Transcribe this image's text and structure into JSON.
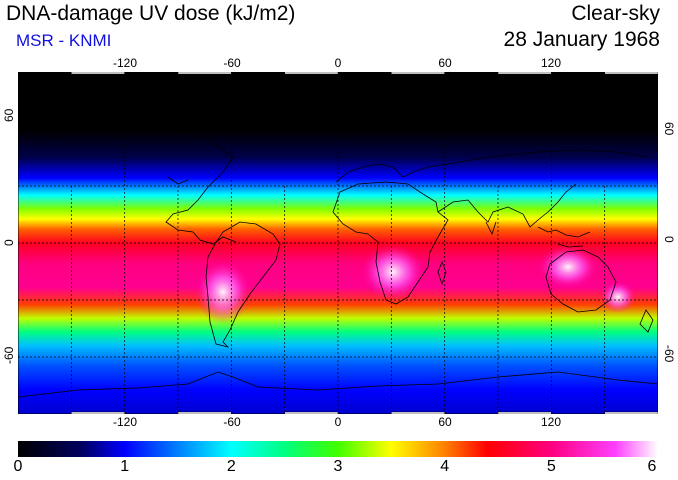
{
  "header": {
    "title": "DNA-damage UV dose (kJ/m2)",
    "source": "MSR - KNMI",
    "sky_condition": "Clear-sky",
    "date": "28 January 1968"
  },
  "map": {
    "lon_ticks": [
      "-120",
      "-60",
      "0",
      "60",
      "120"
    ],
    "lat_ticks": [
      "60",
      "0",
      "-60"
    ],
    "lon_values": [
      -120,
      -60,
      0,
      60,
      120
    ],
    "lat_values": [
      60,
      0,
      -60
    ],
    "lon_range": [
      -180,
      180
    ],
    "lat_range": [
      -90,
      90
    ],
    "grid": "dashed",
    "projection": "plate-carree",
    "cold_color": "#000000",
    "hot_color": "#ffffff"
  },
  "colorbar": {
    "ticks": [
      "0",
      "1",
      "2",
      "3",
      "4",
      "5",
      "6"
    ],
    "range": [
      0,
      6
    ],
    "stops": [
      {
        "v": 0.0,
        "c": "#000000"
      },
      {
        "v": 0.6,
        "c": "#000060"
      },
      {
        "v": 1.0,
        "c": "#0000ff"
      },
      {
        "v": 1.5,
        "c": "#0080ff"
      },
      {
        "v": 2.0,
        "c": "#00ffff"
      },
      {
        "v": 2.5,
        "c": "#00ff80"
      },
      {
        "v": 3.0,
        "c": "#40ff00"
      },
      {
        "v": 3.5,
        "c": "#ffff00"
      },
      {
        "v": 4.0,
        "c": "#ff8000"
      },
      {
        "v": 4.4,
        "c": "#ff0000"
      },
      {
        "v": 5.0,
        "c": "#ff0080"
      },
      {
        "v": 5.6,
        "c": "#ff40ff"
      },
      {
        "v": 6.0,
        "c": "#ffffff"
      }
    ]
  }
}
